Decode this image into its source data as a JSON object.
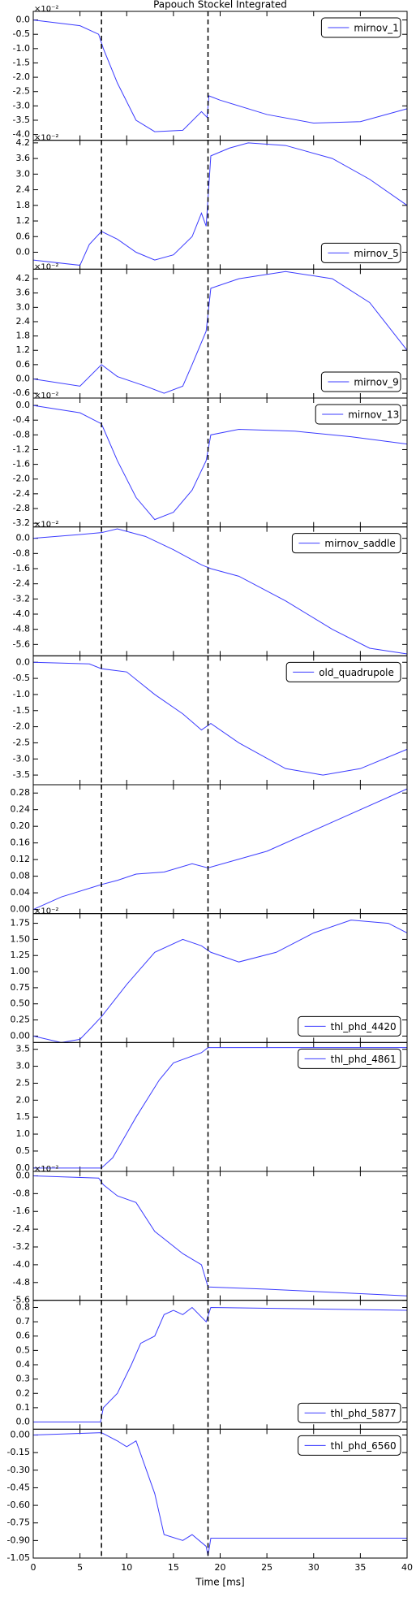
{
  "chart_data": [
    {
      "type": "line",
      "title": "Papouch Stockel Integrated",
      "offset_label": "×10⁻²",
      "xlim": [
        0,
        40
      ],
      "vlines": [
        7.3,
        18.7
      ],
      "legend": "upper right",
      "ylim": [
        -4.2,
        0.3
      ],
      "yticks": [
        {
          "value": 0,
          "label": "0.0"
        },
        -0.5,
        {
          "value": -1,
          "label": "-1.0"
        },
        -1.5,
        {
          "value": -2,
          "label": "-2.0"
        },
        -2.5,
        {
          "value": -3,
          "label": "-3.0"
        },
        -3.5,
        {
          "value": -4,
          "label": "-4.0"
        }
      ],
      "x": [
        0,
        5,
        7,
        7.5,
        9,
        11,
        13,
        16,
        18,
        18.6,
        18.8,
        20,
        25,
        30,
        35,
        40
      ],
      "series": [
        {
          "name": "mirnov_1",
          "color": "#3b3bff",
          "values": [
            0,
            -0.2,
            -0.5,
            -1.0,
            -2.2,
            -3.5,
            -3.9,
            -3.85,
            -3.2,
            -3.4,
            -2.65,
            -2.8,
            -3.3,
            -3.6,
            -3.55,
            -3.1
          ]
        }
      ]
    },
    {
      "type": "line",
      "offset_label": "×10⁻²",
      "xlim": [
        0,
        40
      ],
      "vlines": [
        7.3,
        18.7
      ],
      "legend": "lower right",
      "ylim": [
        -0.65,
        4.3
      ],
      "yticks": [
        {
          "value": 0,
          "label": "0.0"
        },
        0.6,
        1.2,
        1.8,
        2.4,
        {
          "value": 3,
          "label": "3.0"
        },
        3.6,
        4.2
      ],
      "x": [
        0,
        5,
        6,
        7.3,
        9,
        11,
        13,
        15,
        17,
        18,
        18.5,
        19,
        21,
        23,
        27,
        32,
        36,
        40
      ],
      "series": [
        {
          "name": "mirnov_5",
          "color": "#3b3bff",
          "values": [
            -0.3,
            -0.5,
            0.3,
            0.8,
            0.5,
            0,
            -0.3,
            -0.1,
            0.6,
            1.5,
            1.0,
            3.7,
            4.0,
            4.2,
            4.1,
            3.6,
            2.8,
            1.8
          ]
        }
      ]
    },
    {
      "type": "line",
      "offset_label": "×10⁻²",
      "xlim": [
        0,
        40
      ],
      "vlines": [
        7.3,
        18.7
      ],
      "legend": "lower right",
      "ylim": [
        -0.8,
        4.6
      ],
      "yticks": [
        -0.6,
        {
          "value": 0,
          "label": "0.0"
        },
        0.6,
        1.2,
        1.8,
        2.4,
        {
          "value": 3,
          "label": "3.0"
        },
        3.6,
        4.2
      ],
      "x": [
        0,
        5,
        7.3,
        9,
        12,
        14,
        16,
        17,
        18.5,
        19,
        22,
        27,
        32,
        36,
        40
      ],
      "series": [
        {
          "name": "mirnov_9",
          "color": "#3b3bff",
          "values": [
            0,
            -0.3,
            0.6,
            0.1,
            -0.3,
            -0.6,
            -0.3,
            0.6,
            2.0,
            3.8,
            4.2,
            4.5,
            4.2,
            3.2,
            1.2
          ]
        }
      ]
    },
    {
      "type": "line",
      "offset_label": "×10⁻²",
      "xlim": [
        0,
        40
      ],
      "vlines": [
        7.3,
        18.7
      ],
      "legend": "upper right",
      "ylim": [
        -3.3,
        0.2
      ],
      "yticks": [
        {
          "value": 0,
          "label": "0.0"
        },
        -0.4,
        -0.8,
        -1.2,
        -1.6,
        {
          "value": -2,
          "label": "-2.0"
        },
        -2.4,
        -2.8,
        -3.2
      ],
      "x": [
        0,
        5,
        7.3,
        9,
        11,
        13,
        15,
        17,
        18.5,
        19,
        22,
        28,
        34,
        40
      ],
      "series": [
        {
          "name": "mirnov_13",
          "color": "#3b3bff",
          "values": [
            0,
            -0.2,
            -0.5,
            -1.5,
            -2.5,
            -3.1,
            -2.9,
            -2.3,
            -1.5,
            -0.8,
            -0.65,
            -0.7,
            -0.85,
            -1.05
          ]
        }
      ]
    },
    {
      "type": "line",
      "offset_label": "×10⁻²",
      "xlim": [
        0,
        40
      ],
      "vlines": [
        7.3,
        18.7
      ],
      "legend": "upper right",
      "ylim": [
        -6.2,
        0.6
      ],
      "yticks": [
        {
          "value": 0,
          "label": "0.0"
        },
        -0.8,
        -1.6,
        -2.4,
        -3.2,
        {
          "value": -4,
          "label": "-4.0"
        },
        -4.8,
        -5.6
      ],
      "x": [
        0,
        5,
        7.3,
        9,
        12,
        15,
        18,
        19,
        22,
        27,
        32,
        36,
        40
      ],
      "series": [
        {
          "name": "mirnov_saddle",
          "color": "#3b3bff",
          "values": [
            0,
            0.2,
            0.3,
            0.5,
            0.1,
            -0.6,
            -1.4,
            -1.6,
            -2.0,
            -3.3,
            -4.8,
            -5.8,
            -6.1
          ]
        }
      ]
    },
    {
      "type": "line",
      "xlim": [
        0,
        40
      ],
      "vlines": [
        7.3,
        18.7
      ],
      "legend": "upper right",
      "ylim": [
        -3.8,
        0.2
      ],
      "yticks": [
        {
          "value": 0,
          "label": "0.0"
        },
        -0.5,
        {
          "value": -1,
          "label": "-1.0"
        },
        -1.5,
        {
          "value": -2,
          "label": "-2.0"
        },
        -2.5,
        {
          "value": -3,
          "label": "-3.0"
        },
        -3.5
      ],
      "x": [
        0,
        6,
        7.3,
        10,
        13,
        16,
        18,
        19,
        22,
        27,
        31,
        35,
        40
      ],
      "series": [
        {
          "name": "old_quadrupole",
          "color": "#3b3bff",
          "values": [
            0,
            -0.05,
            -0.2,
            -0.3,
            -1.0,
            -1.6,
            -2.1,
            -1.9,
            -2.5,
            -3.3,
            -3.5,
            -3.3,
            -2.7
          ]
        }
      ]
    },
    {
      "type": "line",
      "xlim": [
        0,
        40
      ],
      "vlines": [
        7.3,
        18.7
      ],
      "ylim": [
        -0.01,
        0.3
      ],
      "yticks": [
        {
          "value": 0,
          "label": "0.00"
        },
        0.04,
        0.08,
        0.12,
        0.16,
        {
          "value": 0.2,
          "label": "0.20"
        },
        0.24,
        0.28
      ],
      "x": [
        0,
        3,
        7.3,
        9,
        11,
        14,
        17,
        18.7,
        25,
        33,
        40
      ],
      "series": [
        {
          "color": "#3b3bff",
          "values": [
            0,
            0.03,
            0.06,
            0.07,
            0.085,
            0.09,
            0.11,
            0.1,
            0.14,
            0.22,
            0.29
          ]
        }
      ]
    },
    {
      "type": "line",
      "offset_label": "×10⁻²",
      "xlim": [
        0,
        40
      ],
      "vlines": [
        7.3,
        18.7
      ],
      "legend": "lower right",
      "ylim": [
        -0.1,
        1.9
      ],
      "yticks": [
        {
          "value": 0,
          "label": "0.00"
        },
        0.25,
        {
          "value": 0.5,
          "label": "0.50"
        },
        0.75,
        {
          "value": 1,
          "label": "1.00"
        },
        1.25,
        {
          "value": 1.5,
          "label": "1.50"
        },
        1.75
      ],
      "x": [
        0,
        3,
        5,
        6,
        7.3,
        10,
        13,
        16,
        18,
        19,
        22,
        26,
        30,
        34,
        38,
        40
      ],
      "series": [
        {
          "name": "thl_phd_4420",
          "color": "#3b3bff",
          "values": [
            0,
            -0.1,
            -0.05,
            0.1,
            0.3,
            0.8,
            1.3,
            1.5,
            1.4,
            1.3,
            1.15,
            1.3,
            1.6,
            1.8,
            1.75,
            1.6
          ]
        }
      ]
    },
    {
      "type": "line",
      "xlim": [
        0,
        40
      ],
      "vlines": [
        7.3,
        18.7
      ],
      "legend": "upper right",
      "ylim": [
        -0.1,
        3.7
      ],
      "yticks": [
        {
          "value": 0,
          "label": "0.0"
        },
        0.5,
        {
          "value": 1,
          "label": "1.0"
        },
        1.5,
        {
          "value": 2,
          "label": "2.0"
        },
        2.5,
        {
          "value": 3,
          "label": "3.0"
        },
        3.5
      ],
      "x": [
        0,
        7.3,
        8.5,
        11,
        13.5,
        15,
        18,
        18.7,
        40
      ],
      "series": [
        {
          "name": "thl_phd_4861",
          "color": "#3b3bff",
          "values": [
            0,
            0,
            0.3,
            1.5,
            2.6,
            3.1,
            3.4,
            3.55,
            3.55
          ]
        }
      ]
    },
    {
      "type": "line",
      "offset_label": "×10⁻²",
      "xlim": [
        0,
        40
      ],
      "vlines": [
        7.3,
        18.7
      ],
      "ylim": [
        -5.6,
        0.2
      ],
      "yticks": [
        {
          "value": 0,
          "label": "0.0"
        },
        -0.8,
        -1.6,
        -2.4,
        -3.2,
        {
          "value": -4,
          "label": "-4.0"
        },
        -4.8,
        -5.6
      ],
      "x": [
        0,
        7,
        7.5,
        9,
        11,
        13,
        16,
        18,
        18.7,
        25,
        35,
        40
      ],
      "series": [
        {
          "color": "#3b3bff",
          "values": [
            0,
            -0.1,
            -0.4,
            -0.9,
            -1.2,
            -2.5,
            -3.5,
            -4.0,
            -5.0,
            -5.1,
            -5.3,
            -5.4
          ]
        }
      ]
    },
    {
      "type": "line",
      "xlim": [
        0,
        40
      ],
      "vlines": [
        7.3,
        18.7
      ],
      "legend": "lower right",
      "ylim": [
        -0.05,
        0.85
      ],
      "yticks": [
        {
          "value": 0,
          "label": "0.0"
        },
        0.1,
        0.2,
        0.3,
        0.4,
        0.5,
        0.6,
        0.7,
        0.8
      ],
      "x": [
        0,
        7.2,
        7.5,
        9,
        10.5,
        11.5,
        13,
        14,
        15,
        16,
        17,
        18.5,
        19,
        40
      ],
      "series": [
        {
          "name": "thl_phd_5877",
          "color": "#3b3bff",
          "values": [
            0,
            0,
            0.1,
            0.2,
            0.4,
            0.55,
            0.6,
            0.75,
            0.78,
            0.75,
            0.8,
            0.7,
            0.8,
            0.78
          ]
        }
      ]
    },
    {
      "type": "line",
      "xlabel": "Time [ms]",
      "xlim": [
        0,
        40
      ],
      "xticks": [
        0,
        5,
        10,
        15,
        20,
        25,
        30,
        35,
        40
      ],
      "vlines": [
        7.3,
        18.7
      ],
      "legend": "upper right",
      "ylim": [
        -1.05,
        0.05
      ],
      "yticks": [
        {
          "value": 0,
          "label": "0.00"
        },
        -0.15,
        {
          "value": -0.3,
          "label": "-0.30"
        },
        -0.45,
        {
          "value": -0.6,
          "label": "-0.60"
        },
        -0.75,
        {
          "value": -0.9,
          "label": "-0.90"
        },
        -1.05
      ],
      "x": [
        0,
        7.3,
        9,
        10,
        11,
        13,
        14,
        16,
        17,
        18.5,
        18.7,
        19,
        40
      ],
      "series": [
        {
          "name": "thl_phd_6560",
          "color": "#3b3bff",
          "values": [
            0,
            0.02,
            -0.05,
            -0.1,
            -0.05,
            -0.5,
            -0.85,
            -0.9,
            -0.85,
            -0.95,
            -1.03,
            -0.88,
            -0.88
          ]
        }
      ]
    }
  ]
}
